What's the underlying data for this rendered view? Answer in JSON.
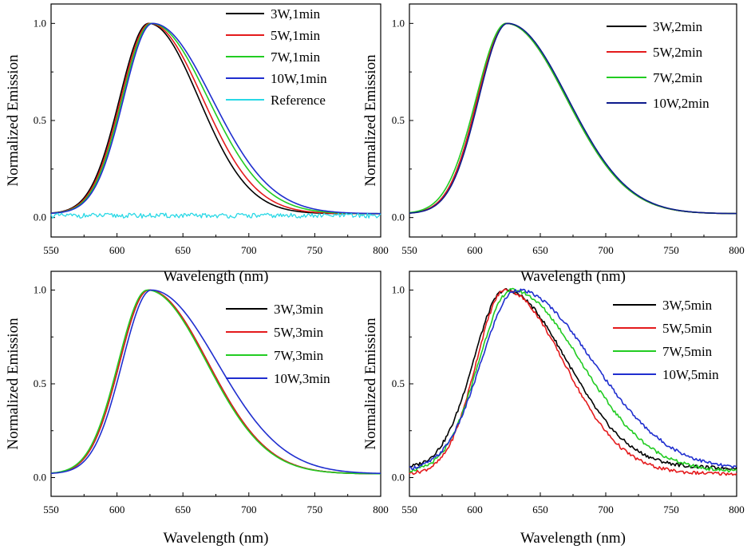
{
  "colors": {
    "black": "#000000",
    "red": "#e41a1c",
    "green": "#22cc22",
    "blue": "#1f2ecf",
    "cyan": "#29d8e6",
    "navy": "#0c1a8c"
  },
  "chart_data": [
    {
      "type": "line",
      "panel": "top-left",
      "xlabel": "Wavelength (nm)",
      "ylabel": "Normalized Emission",
      "xlim": [
        550,
        800
      ],
      "ylim": [
        -0.1,
        1.1
      ],
      "xticks": [
        "550",
        "600",
        "650",
        "700",
        "750",
        "800"
      ],
      "yticks": [
        "0.0",
        "0.5",
        "1.0"
      ],
      "legend_position": "top-right",
      "series": [
        {
          "name": "3W,1min",
          "color": "black",
          "peak": 624,
          "sl": 22,
          "sr": 38,
          "base": 0.02
        },
        {
          "name": "5W,1min",
          "color": "red",
          "peak": 625,
          "sl": 22,
          "sr": 40,
          "base": 0.02
        },
        {
          "name": "7W,1min",
          "color": "green",
          "peak": 626,
          "sl": 22,
          "sr": 43,
          "base": 0.02
        },
        {
          "name": "10W,1min",
          "color": "blue",
          "peak": 627,
          "sl": 22,
          "sr": 45,
          "base": 0.02
        },
        {
          "name": "Reference",
          "color": "cyan",
          "flat": 0.01
        }
      ]
    },
    {
      "type": "line",
      "panel": "top-right",
      "xlabel": "Wavelength (nm)",
      "ylabel": "Normalized Emission",
      "xlim": [
        550,
        800
      ],
      "ylim": [
        -0.1,
        1.1
      ],
      "xticks": [
        "550",
        "600",
        "650",
        "700",
        "750",
        "800"
      ],
      "yticks": [
        "0.0",
        "0.5",
        "1.0"
      ],
      "legend_position": "top-right",
      "series": [
        {
          "name": "3W,2min",
          "color": "black",
          "peak": 624,
          "sl": 22,
          "sr": 46,
          "base": 0.02
        },
        {
          "name": "5W,2min",
          "color": "red",
          "peak": 624,
          "sl": 22,
          "sr": 46,
          "base": 0.02
        },
        {
          "name": "7W,2min",
          "color": "green",
          "peak": 624,
          "sl": 23,
          "sr": 46,
          "base": 0.02
        },
        {
          "name": "10W,2min",
          "color": "navy",
          "peak": 625,
          "sl": 22,
          "sr": 46,
          "base": 0.02
        }
      ]
    },
    {
      "type": "line",
      "panel": "bottom-left",
      "xlabel": "Wavelength (nm)",
      "ylabel": "Normalized Emission",
      "xlim": [
        550,
        800
      ],
      "ylim": [
        -0.1,
        1.1
      ],
      "xticks": [
        "550",
        "600",
        "650",
        "700",
        "750",
        "800"
      ],
      "yticks": [
        "0.0",
        "0.5",
        "1.0"
      ],
      "legend_position": "right",
      "series": [
        {
          "name": "3W,3min",
          "color": "black",
          "peak": 624,
          "sl": 22,
          "sr": 45,
          "base": 0.02
        },
        {
          "name": "5W,3min",
          "color": "red",
          "peak": 624,
          "sl": 22,
          "sr": 45,
          "base": 0.02
        },
        {
          "name": "7W,3min",
          "color": "green",
          "peak": 623,
          "sl": 22,
          "sr": 45,
          "base": 0.02
        },
        {
          "name": "10W,3min",
          "color": "blue",
          "peak": 626,
          "sl": 22,
          "sr": 50,
          "base": 0.02
        }
      ]
    },
    {
      "type": "line",
      "panel": "bottom-right",
      "xlabel": "Wavelength (nm)",
      "ylabel": "Normalized Emission",
      "xlim": [
        550,
        800
      ],
      "ylim": [
        -0.1,
        1.1
      ],
      "xticks": [
        "550",
        "600",
        "650",
        "700",
        "750",
        "800"
      ],
      "yticks": [
        "0.0",
        "0.5",
        "1.0"
      ],
      "legend_position": "right",
      "series": [
        {
          "name": "3W,5min",
          "color": "black",
          "peak": 623,
          "sl": 24,
          "sr": 47,
          "base": 0.05
        },
        {
          "name": "5W,5min",
          "color": "red",
          "peak": 623,
          "sl": 22,
          "sr": 45,
          "base": 0.02
        },
        {
          "name": "7W,5min",
          "color": "green",
          "peak": 628,
          "sl": 25,
          "sr": 53,
          "base": 0.03
        },
        {
          "name": "10W,5min",
          "color": "blue",
          "peak": 632,
          "sl": 27,
          "sr": 58,
          "base": 0.04
        }
      ]
    }
  ]
}
